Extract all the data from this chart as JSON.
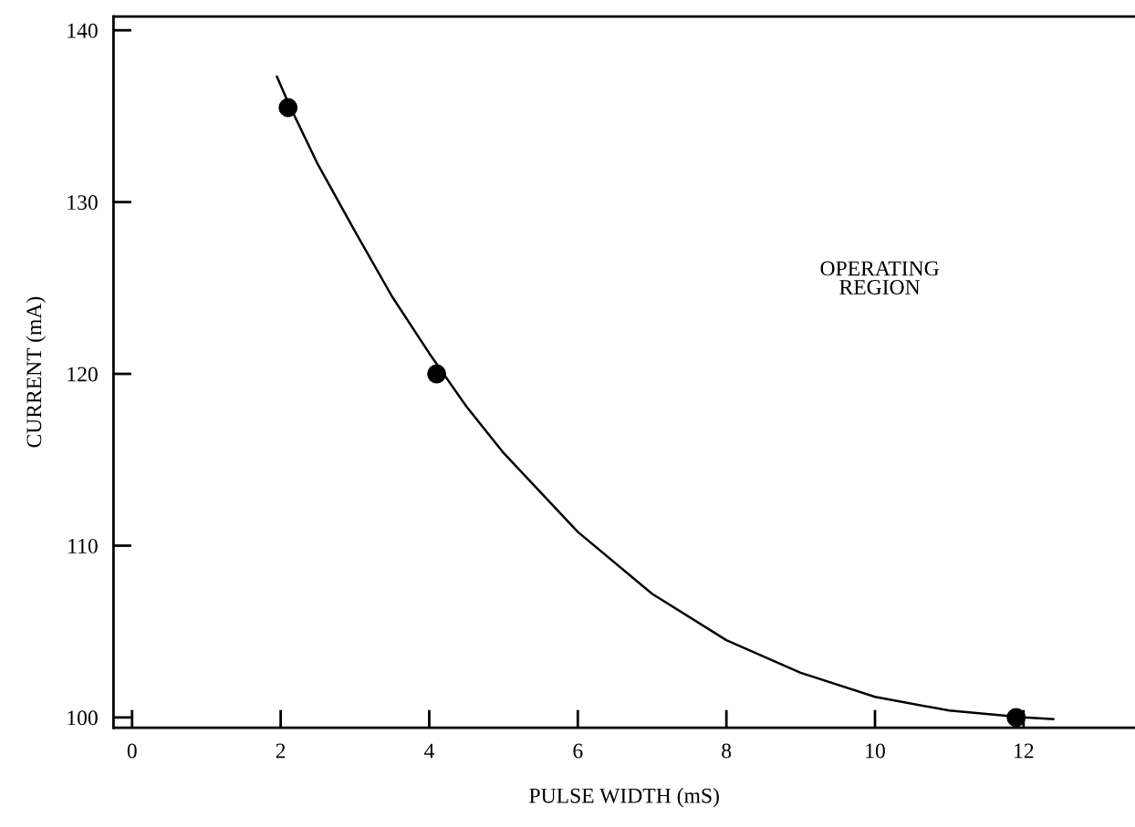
{
  "chart_data": {
    "type": "scatter",
    "xlabel": "PULSE WIDTH (mS)",
    "ylabel": "CURRENT (mA)",
    "xlim": [
      -0.25,
      13.5
    ],
    "ylim": [
      99.4,
      140.8
    ],
    "xticks": [
      0,
      2,
      4,
      6,
      8,
      10,
      12
    ],
    "yticks": [
      100,
      110,
      120,
      130,
      140
    ],
    "series": [
      {
        "type": "line",
        "color": "#000000",
        "marker": "none",
        "x": [
          1.95,
          2.1,
          2.5,
          3,
          3.5,
          4,
          4.5,
          5,
          6,
          7,
          8,
          9,
          10,
          11,
          12,
          12.4
        ],
        "values": [
          137.3,
          135.8,
          132.2,
          128.3,
          124.5,
          121.2,
          118.1,
          115.4,
          110.8,
          107.2,
          104.5,
          102.6,
          101.2,
          100.4,
          100.0,
          99.9
        ]
      },
      {
        "type": "scatter",
        "color": "#000000",
        "marker": "circle",
        "x": [
          2.1,
          4.1,
          11.9
        ],
        "values": [
          135.5,
          120.0,
          100.0
        ]
      }
    ],
    "annotations": [
      "OPERATING\nREGION"
    ],
    "grid": false,
    "legend": false
  }
}
